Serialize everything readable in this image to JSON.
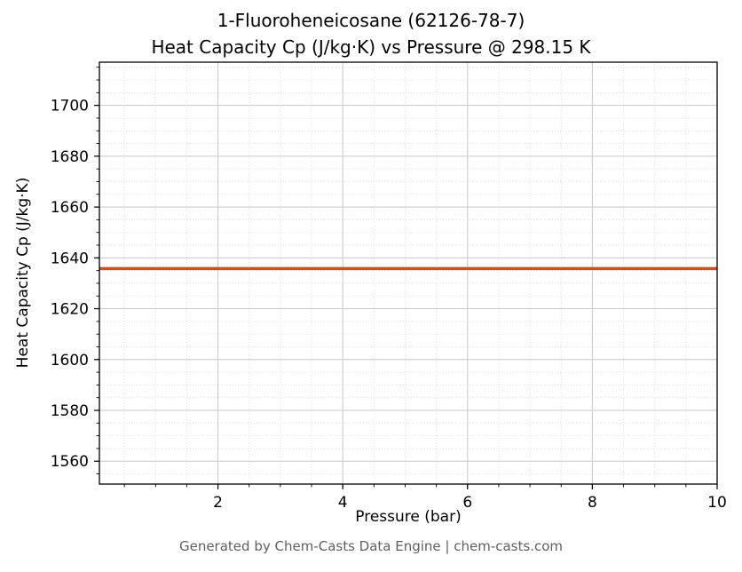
{
  "title": {
    "line1": "1-Fluoroheneicosane (62126-78-7)",
    "line2": "Heat Capacity Cp (J/kg·K) vs Pressure @ 298.15 K"
  },
  "footer": "Generated by Chem-Casts Data Engine | chem-casts.com",
  "chart_data": {
    "type": "line",
    "title": "1-Fluoroheneicosane (62126-78-7) — Heat Capacity Cp (J/kg·K) vs Pressure @ 298.15 K",
    "xlabel": "Pressure (bar)",
    "ylabel": "Heat Capacity Cp (J/kg·K)",
    "xlim": [
      0.1,
      10
    ],
    "ylim": [
      1551,
      1717
    ],
    "x_ticks": [
      2,
      4,
      6,
      8,
      10
    ],
    "y_ticks": [
      1560,
      1580,
      1600,
      1620,
      1640,
      1660,
      1680,
      1700
    ],
    "x_minor_step": 0.5,
    "y_minor_step": 5,
    "grid": true,
    "grid_major_color": "#c9c9c9",
    "grid_minor_color": "#e1e1e1",
    "axis_color": "#000000",
    "series": [
      {
        "name": "Cp",
        "color": "#cf4e1f",
        "line_width": 3.5,
        "x": [
          0.1,
          10
        ],
        "y": [
          1635.8,
          1635.8
        ]
      }
    ]
  }
}
